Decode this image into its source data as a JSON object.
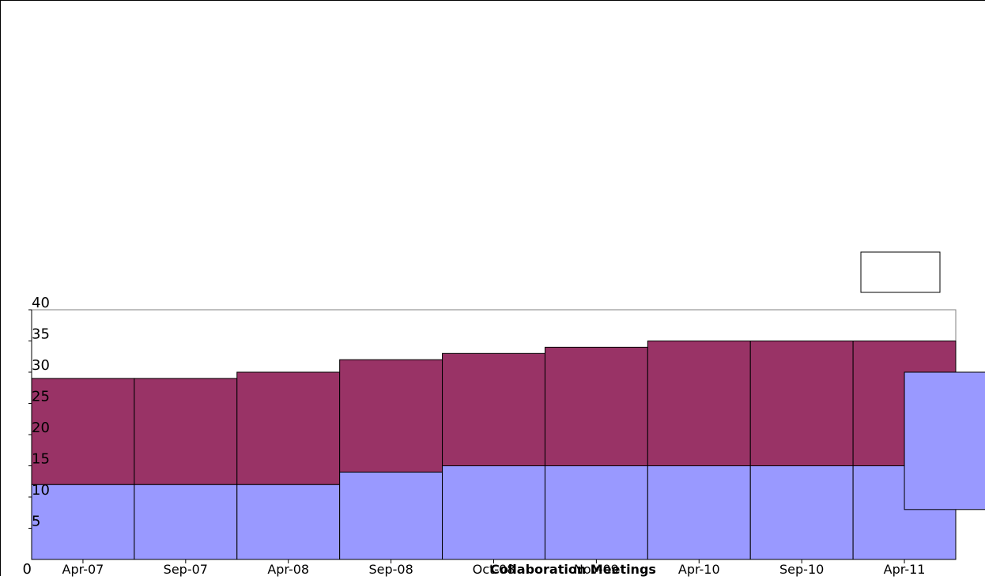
{
  "chart_data": {
    "type": "bar",
    "stacked": true,
    "categories": [
      "Apr-07",
      "Sep-07",
      "Apr-08",
      "Sep-08",
      "Oct-08",
      "Nov-09",
      "Apr-10",
      "Sep-10",
      "Apr-11"
    ],
    "series": [
      {
        "values": [
          12,
          12,
          12,
          14,
          15,
          15,
          15,
          15,
          15
        ]
      },
      {
        "values": [
          17,
          17,
          18,
          18,
          18,
          19,
          20,
          20,
          20
        ]
      }
    ],
    "overlay_box": {
      "from": 8,
      "to": 30
    },
    "title": "",
    "xlabel": "Collaboration Meetings",
    "ylabel": "",
    "ylim": [
      0,
      40
    ],
    "yticks": [
      0,
      5,
      10,
      15,
      20,
      25,
      30,
      35,
      40
    ],
    "grid": false,
    "colors": {
      "series_1": "#9999ff",
      "series_2": "#993366",
      "outline": "#000000",
      "plot_border": "#808080"
    },
    "legend": {
      "position": "top-right",
      "entries": []
    }
  }
}
